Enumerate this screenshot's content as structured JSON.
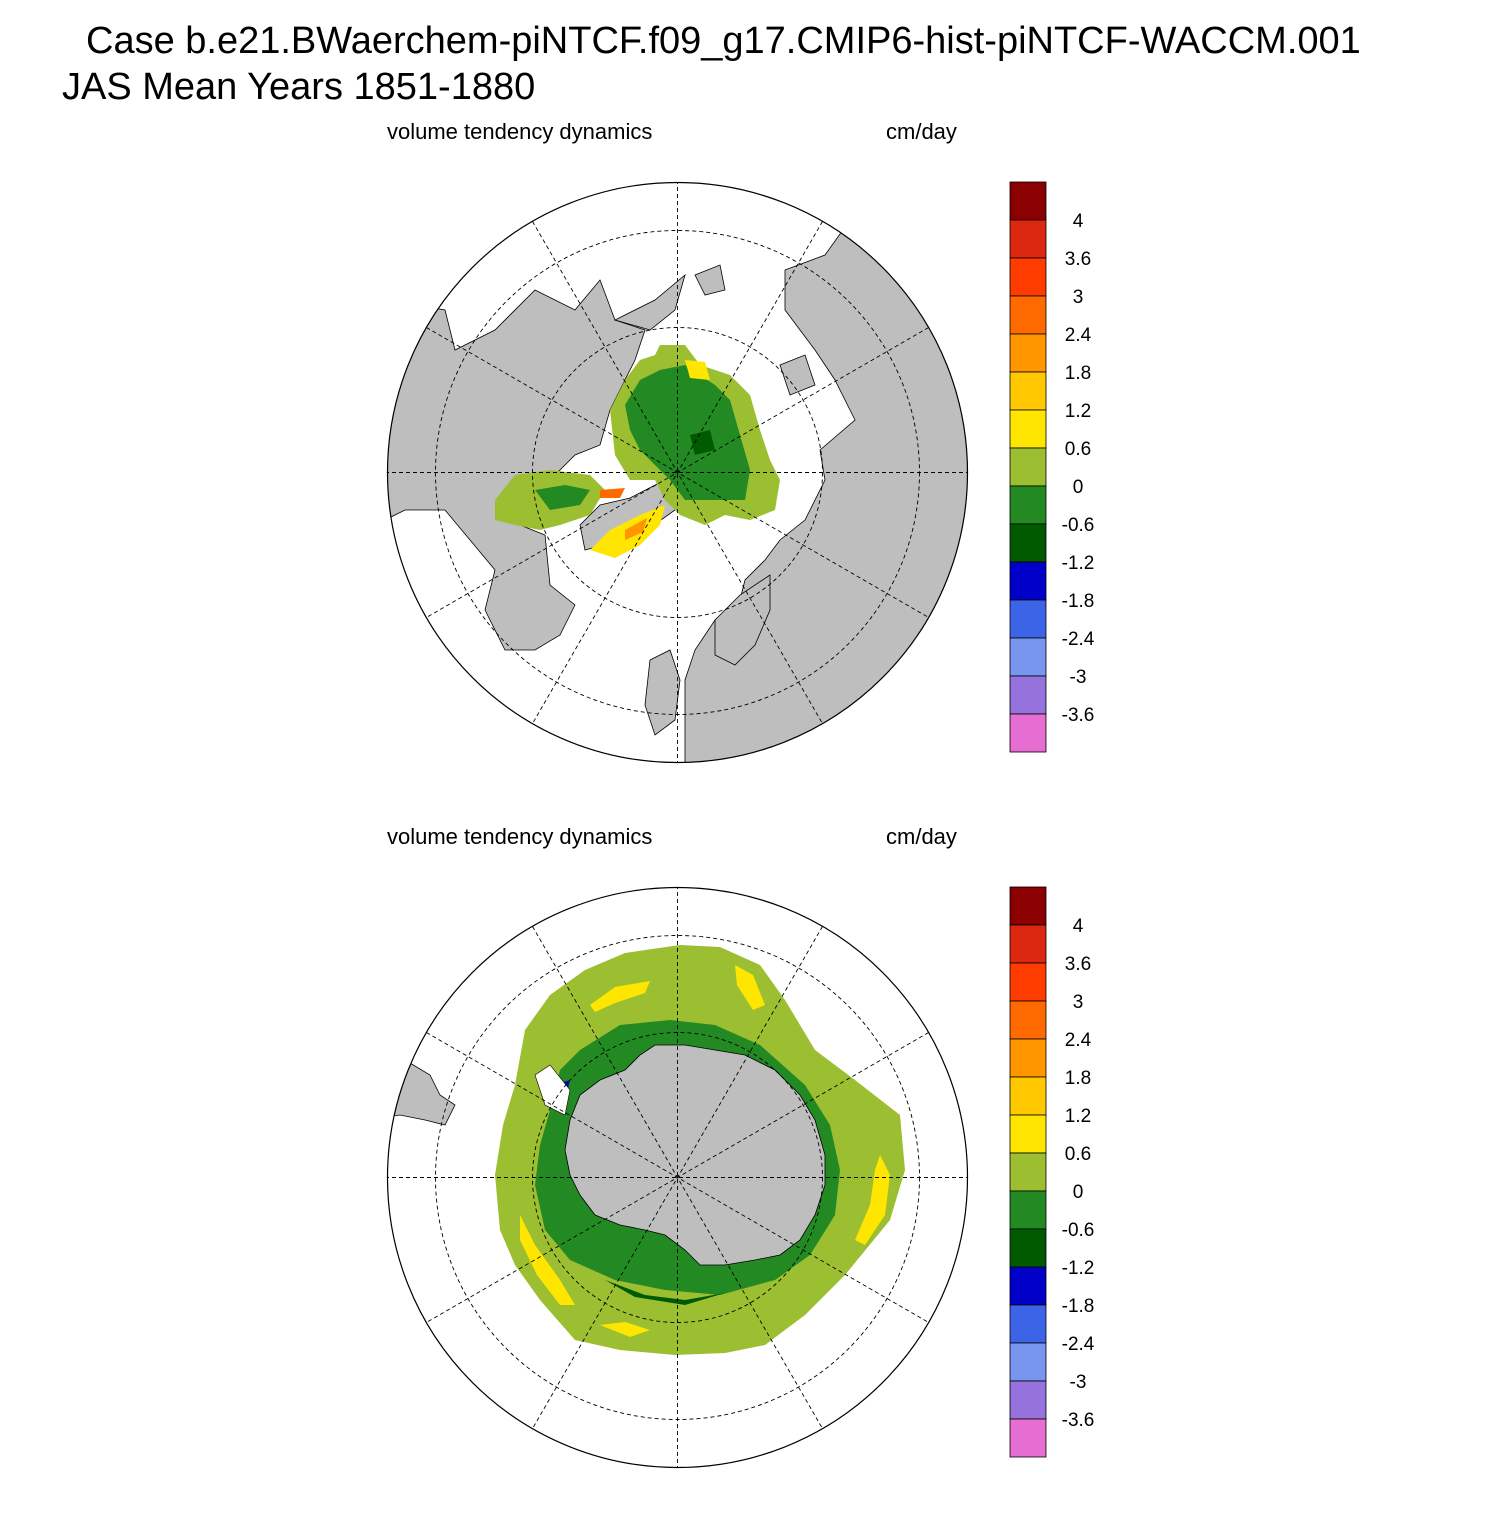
{
  "header": {
    "title_line1": "Case b.e21.BWaerchem-piNTCF.f09_g17.CMIP6-hist-piNTCF-WACCM.001",
    "title_line2": "JAS Mean   Years 1851-1880"
  },
  "panels": [
    {
      "id": "north",
      "hemisphere": "Northern Hemisphere polar stereographic",
      "left_label": "volume tendency dynamics",
      "right_label": "cm/day"
    },
    {
      "id": "south",
      "hemisphere": "Southern Hemisphere polar stereographic",
      "left_label": "volume tendency dynamics",
      "right_label": "cm/day"
    }
  ],
  "colorbar": {
    "labels": [
      "4",
      "3.6",
      "3",
      "2.4",
      "1.8",
      "1.2",
      "0.6",
      "0",
      "-0.6",
      "-1.2",
      "-1.8",
      "-2.4",
      "-3",
      "-3.6"
    ],
    "colors": [
      "#8b0000",
      "#dc2810",
      "#ff3c00",
      "#ff6a00",
      "#ff9600",
      "#ffc800",
      "#ffe600",
      "#9cbf32",
      "#238a23",
      "#005a00",
      "#0000c8",
      "#3c64e6",
      "#7896f0",
      "#9673dc",
      "#e66ed2"
    ]
  },
  "map_colors": {
    "land": "#bebebe",
    "ocean": "#ffffff",
    "grid": "#000000"
  }
}
